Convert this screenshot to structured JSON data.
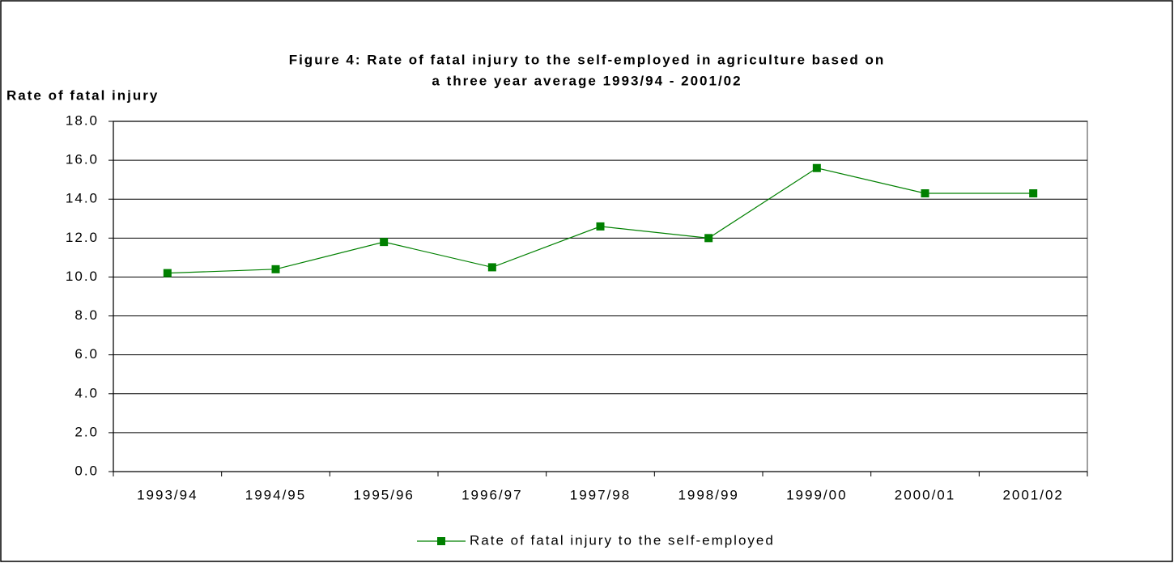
{
  "chart_data": {
    "type": "line",
    "title": [
      "Figure 4: Rate of fatal injury to the self-employed in agriculture based on",
      "a three year average 1993/94 - 2001/02"
    ],
    "y_label": "Rate of fatal injury",
    "categories": [
      "1993/94",
      "1994/95",
      "1995/96",
      "1996/97",
      "1997/98",
      "1998/99",
      "1999/00",
      "2000/01",
      "2001/02"
    ],
    "series": [
      {
        "name": "Rate of fatal injury to the self-employed",
        "color": "#008000",
        "values": [
          10.2,
          10.4,
          11.8,
          10.5,
          12.6,
          12.0,
          15.6,
          14.3,
          14.3
        ]
      }
    ],
    "ylim": [
      0,
      18
    ],
    "yticks": [
      {
        "value": 0,
        "label": "0.0"
      },
      {
        "value": 2,
        "label": "2.0"
      },
      {
        "value": 4,
        "label": "4.0"
      },
      {
        "value": 6,
        "label": "6.0"
      },
      {
        "value": 8,
        "label": "8.0"
      },
      {
        "value": 10,
        "label": "10.0"
      },
      {
        "value": 12,
        "label": "12.0"
      },
      {
        "value": 14,
        "label": "14.0"
      },
      {
        "value": 16,
        "label": "16.0"
      },
      {
        "value": 18,
        "label": "18.0"
      }
    ],
    "grid": true,
    "legend": "bottom"
  }
}
